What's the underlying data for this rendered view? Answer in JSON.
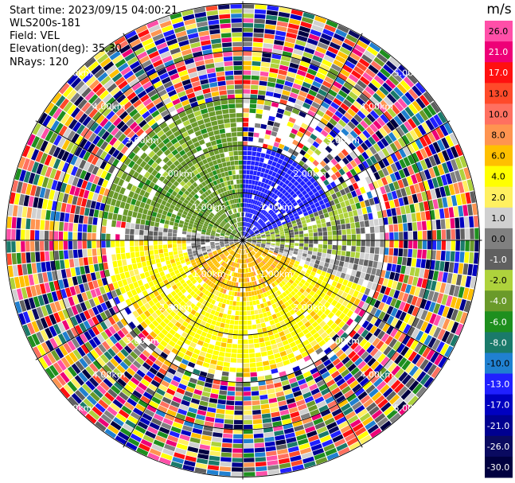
{
  "header": {
    "start_time": "Start time: 2023/09/15 04:00:21",
    "instrument": "WLS200s-181",
    "field": "Field: VEL",
    "elevation": "Elevation(deg): 35.30",
    "nrays": "NRays: 120"
  },
  "colorbar": {
    "unit": "m/s",
    "ticks": [
      "26.0",
      "21.0",
      "17.0",
      "13.0",
      "10.0",
      "8.0",
      "6.0",
      "4.0",
      "2.0",
      "1.0",
      "0.0",
      "-1.0",
      "-2.0",
      "-4.0",
      "-6.0",
      "-8.0",
      "-10.0",
      "-13.0",
      "-17.0",
      "-21.0",
      "-26.0",
      "-30.0"
    ],
    "colors": [
      "#ff4fa8",
      "#ee0077",
      "#ff1010",
      "#ff4a2a",
      "#ff7060",
      "#ff9450",
      "#ffc000",
      "#ffff00",
      "#fff060",
      "#d0d0d0",
      "#808080",
      "#606060",
      "#aed23c",
      "#6a9a2a",
      "#1e8f1e",
      "#1a7a6a",
      "#2080d0",
      "#2020ff",
      "#0000c0",
      "#000090",
      "#0a0a60",
      "#000040"
    ]
  },
  "chart_data": {
    "type": "heatmap",
    "title": "",
    "projection": "polar (PPI)",
    "unit": "m/s",
    "range_rings_km": [
      1.0,
      2.0,
      3.0,
      4.0,
      5.0
    ],
    "range_ring_labels": [
      "1.00km",
      "2.00km",
      "3.00km",
      "4.00km",
      "5.00km"
    ],
    "nrays": 120,
    "color_scale_min": -30.0,
    "color_scale_max": 26.0,
    "sectors": [
      {
        "azimuth_deg": [
          280,
          360
        ],
        "range_km": [
          0,
          3.0
        ],
        "velocity": -4.0
      },
      {
        "azimuth_deg": [
          0,
          70
        ],
        "range_km": [
          0,
          2.0
        ],
        "velocity": -13.0
      },
      {
        "azimuth_deg": [
          60,
          100
        ],
        "range_km": [
          0,
          2.5
        ],
        "velocity": -2.0
      },
      {
        "azimuth_deg": [
          80,
          110
        ],
        "range_km": [
          0,
          3.0
        ],
        "velocity": 0.0
      },
      {
        "azimuth_deg": [
          110,
          250
        ],
        "range_km": [
          0,
          1.2
        ],
        "velocity": 6.0
      },
      {
        "azimuth_deg": [
          100,
          270
        ],
        "range_km": [
          1.2,
          2.8
        ],
        "velocity": 4.0
      },
      {
        "azimuth_deg": [
          250,
          285
        ],
        "range_km": [
          0,
          2.5
        ],
        "velocity": 0.0
      }
    ],
    "noise_beyond_km": 3.0
  }
}
